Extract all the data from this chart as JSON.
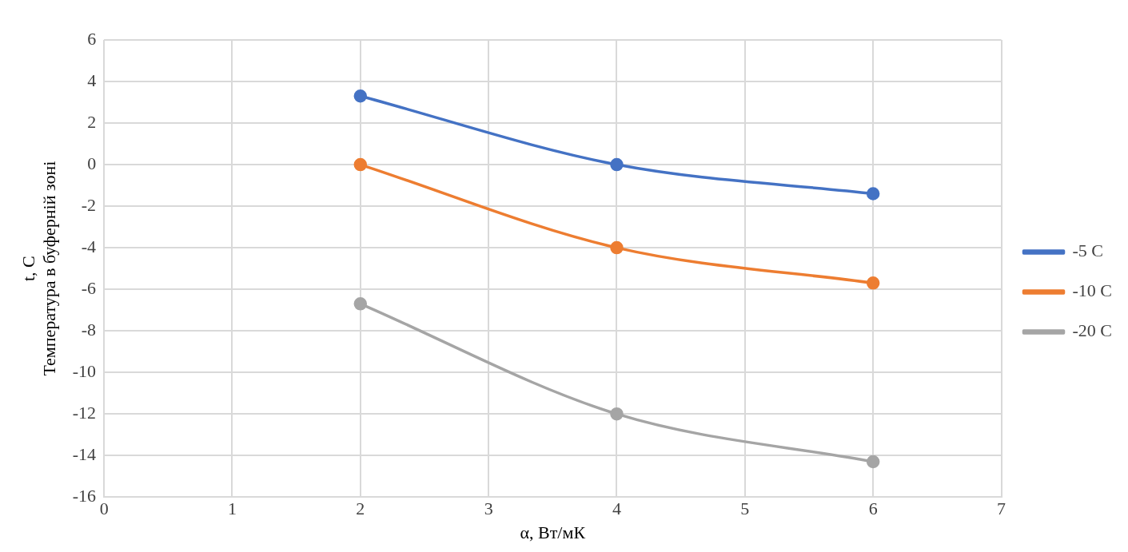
{
  "chart_data": {
    "type": "line",
    "xlabel": "α, Вт/мК",
    "ylabel": "t, C\nТемпература в буферній зоні",
    "x": [
      2,
      4,
      6
    ],
    "series": [
      {
        "name": "-5 C",
        "color": "#4472c4",
        "values": [
          3.3,
          0,
          -1.4
        ]
      },
      {
        "name": "-10 C",
        "color": "#ed7d31",
        "values": [
          0,
          -4,
          -5.7
        ]
      },
      {
        "name": "-20 C",
        "color": "#a5a5a5",
        "values": [
          -6.7,
          -12,
          -14.3
        ]
      }
    ],
    "xlim": [
      0,
      7
    ],
    "xticks": [
      0,
      1,
      2,
      3,
      4,
      5,
      6,
      7
    ],
    "ylim": [
      -16,
      6
    ],
    "yticks": [
      -16,
      -14,
      -12,
      -10,
      -8,
      -6,
      -4,
      -2,
      0,
      2,
      4,
      6
    ],
    "grid": true,
    "legend": "right",
    "marker": "circle",
    "line_style": "solid"
  }
}
